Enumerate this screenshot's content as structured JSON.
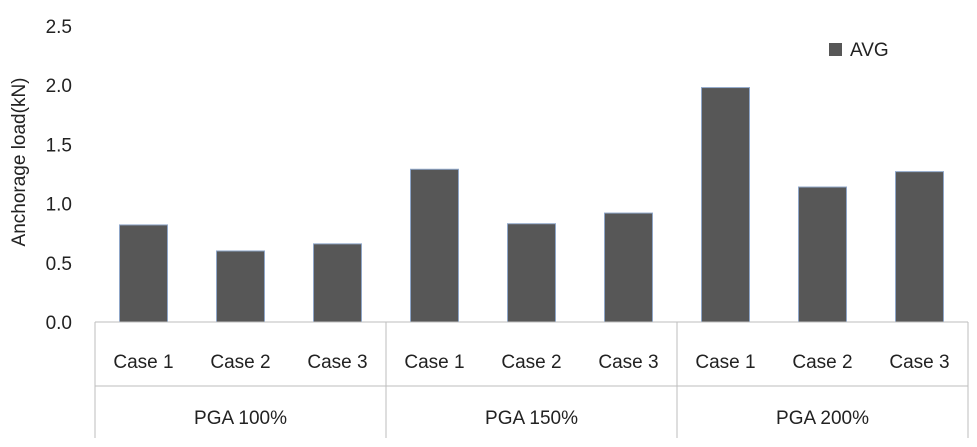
{
  "chart_data": {
    "type": "bar",
    "ylabel": "Anchorage load(kN)",
    "xlabel": "",
    "ylim": [
      0,
      2.5
    ],
    "yticks": [
      "0.0",
      "0.5",
      "1.0",
      "1.5",
      "2.0",
      "2.5"
    ],
    "grid": false,
    "legend_position": "top-right",
    "groups": [
      {
        "label": "PGA 100%",
        "categories": [
          "Case 1",
          "Case 2",
          "Case 3"
        ]
      },
      {
        "label": "PGA 150%",
        "categories": [
          "Case 1",
          "Case 2",
          "Case 3"
        ]
      },
      {
        "label": "PGA 200%",
        "categories": [
          "Case 1",
          "Case 2",
          "Case 3"
        ]
      }
    ],
    "series": [
      {
        "name": "AVG",
        "color": "#575757",
        "values": [
          0.82,
          0.6,
          0.66,
          1.29,
          0.83,
          0.92,
          1.98,
          1.14,
          1.27
        ]
      }
    ]
  }
}
